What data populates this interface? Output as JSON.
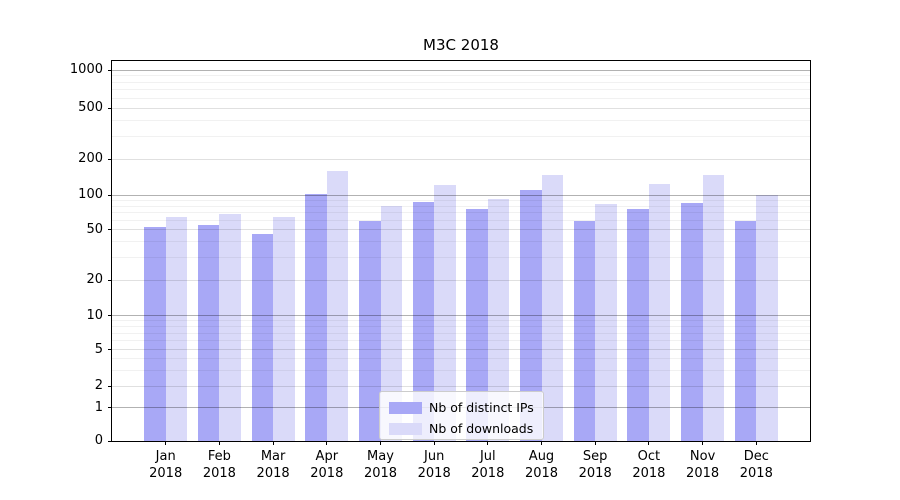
{
  "chart_data": {
    "type": "bar",
    "title": "M3C 2018",
    "categories": [
      "Jan",
      "Feb",
      "Mar",
      "Apr",
      "May",
      "Jun",
      "Jul",
      "Aug",
      "Sep",
      "Oct",
      "Nov",
      "Dec"
    ],
    "category_year": "2018",
    "series": [
      {
        "name": "Nb of distinct IPs",
        "color": "#a8a8f6",
        "values": [
          53,
          55,
          46,
          103,
          59,
          88,
          75,
          110,
          59,
          75,
          85,
          60
        ]
      },
      {
        "name": "Nb of downloads",
        "color": "#dadaf9",
        "values": [
          65,
          69,
          64,
          160,
          81,
          122,
          92,
          148,
          84,
          123,
          147,
          101
        ]
      }
    ],
    "y_axis": {
      "scale": "symlog-like",
      "ticks": [
        0,
        1,
        2,
        5,
        10,
        20,
        50,
        100,
        200,
        500,
        1000
      ],
      "tick_labels": [
        "0",
        "1",
        "2",
        "5",
        "10",
        "20",
        "50",
        "100",
        "200",
        "500",
        "1000"
      ],
      "ylim_top_value": 1190
    },
    "y_scale_anchors": [
      [
        0,
        0.0
      ],
      [
        1,
        0.0873
      ],
      [
        2,
        0.144
      ],
      [
        5,
        0.2405
      ],
      [
        10,
        0.3298
      ],
      [
        20,
        0.4226
      ],
      [
        50,
        0.5566
      ],
      [
        100,
        0.647
      ],
      [
        200,
        0.7416
      ],
      [
        500,
        0.8757
      ],
      [
        1000,
        0.9763
      ]
    ],
    "grid": {
      "major": true,
      "minor": true
    },
    "legend": {
      "position": "lower-center-inside"
    }
  },
  "colors": {
    "background": "#ffffff",
    "axis": "#000000",
    "legend_border": "#cccccc"
  }
}
